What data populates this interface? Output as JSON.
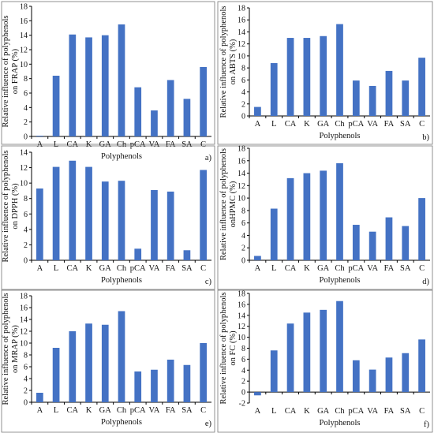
{
  "colors": {
    "bar": "#4472C4",
    "axis": "#000000",
    "frame": "#777777"
  },
  "chart_data": [
    {
      "type": "bar",
      "panel_label": "a)",
      "ylabel_line1": "Relative influence of polyphenols",
      "ylabel_line2": "on FRAP (%)",
      "xlabel": "Polyphenols",
      "categories": [
        "A",
        "L",
        "CA",
        "K",
        "GA",
        "Ch",
        "pCA",
        "VA",
        "FA",
        "SA",
        "C"
      ],
      "values": [
        0.1,
        8.4,
        14.1,
        13.7,
        14.0,
        15.5,
        6.8,
        3.6,
        7.8,
        5.2,
        9.6
      ],
      "ylim": [
        0,
        18
      ],
      "yticks": [
        0,
        2,
        4,
        6,
        8,
        10,
        12,
        14,
        16,
        18
      ],
      "grid": false
    },
    {
      "type": "bar",
      "panel_label": "b)",
      "ylabel_line1": "Relative influence of polyphenols",
      "ylabel_line2": "on ABTS (%)",
      "xlabel": "Polyphenols",
      "categories": [
        "A",
        "L",
        "CA",
        "K",
        "GA",
        "Ch",
        "pCA",
        "VA",
        "FA",
        "SA",
        "C"
      ],
      "values": [
        1.5,
        8.8,
        13.0,
        13.0,
        13.3,
        15.3,
        5.9,
        5.0,
        7.5,
        5.9,
        9.7
      ],
      "ylim": [
        0,
        18
      ],
      "yticks": [
        0,
        2,
        4,
        6,
        8,
        10,
        12,
        14,
        16,
        18
      ],
      "grid": false
    },
    {
      "type": "bar",
      "panel_label": "c)",
      "ylabel_line1": "Relative influence of polyphenols",
      "ylabel_line2": "on DPPH (%)",
      "xlabel": "Polyphenols",
      "categories": [
        "A",
        "L",
        "CA",
        "K",
        "GA",
        "Ch",
        "pCA",
        "VA",
        "FA",
        "SA",
        "C"
      ],
      "values": [
        9.3,
        12.1,
        12.9,
        12.1,
        10.2,
        10.3,
        1.5,
        9.1,
        8.9,
        1.3,
        11.7
      ],
      "ylim": [
        0,
        14
      ],
      "yticks": [
        0,
        2,
        4,
        6,
        8,
        10,
        12,
        14
      ],
      "grid": false
    },
    {
      "type": "bar",
      "panel_label": "d)",
      "ylabel_line1": "Relative influence of polyphenols",
      "ylabel_line2": "onHPMC (%)",
      "xlabel": "Polyphenols",
      "categories": [
        "A",
        "L",
        "CA",
        "K",
        "GA",
        "Ch",
        "pCA",
        "VA",
        "FA",
        "SA",
        "C"
      ],
      "values": [
        0.7,
        8.3,
        13.2,
        14.0,
        14.4,
        15.6,
        5.7,
        4.6,
        6.9,
        5.5,
        10.0
      ],
      "ylim": [
        0,
        18
      ],
      "yticks": [
        0,
        2,
        4,
        6,
        8,
        10,
        12,
        14,
        16,
        18
      ],
      "grid": false
    },
    {
      "type": "bar",
      "panel_label": "e)",
      "ylabel_line1": "Relative influence of polyphenols",
      "ylabel_line2": "on MRAP (%)",
      "xlabel": "Polyphenols",
      "categories": [
        "A",
        "L",
        "CA",
        "K",
        "GA",
        "Ch",
        "pCA",
        "VA",
        "FA",
        "SA",
        "C"
      ],
      "values": [
        1.6,
        9.2,
        12.0,
        13.3,
        13.1,
        15.4,
        5.2,
        5.5,
        7.2,
        6.3,
        10.0
      ],
      "ylim": [
        0,
        18
      ],
      "yticks": [
        0,
        2,
        4,
        6,
        8,
        10,
        12,
        14,
        16,
        18
      ],
      "grid": false
    },
    {
      "type": "bar",
      "panel_label": "f)",
      "ylabel_line1": "Relative influence of polyphenols",
      "ylabel_line2": "on FC (%)",
      "xlabel": "Polyphenols",
      "categories": [
        "A",
        "L",
        "CA",
        "K",
        "GA",
        "Ch",
        "pCA",
        "VA",
        "FA",
        "SA",
        "C"
      ],
      "values": [
        -0.6,
        7.6,
        12.5,
        14.5,
        15.0,
        16.6,
        5.8,
        4.1,
        6.3,
        7.1,
        9.6
      ],
      "ylim": [
        -2,
        18
      ],
      "yticks": [
        -2,
        0,
        2,
        4,
        6,
        8,
        10,
        12,
        14,
        16,
        18
      ],
      "grid": false
    }
  ]
}
